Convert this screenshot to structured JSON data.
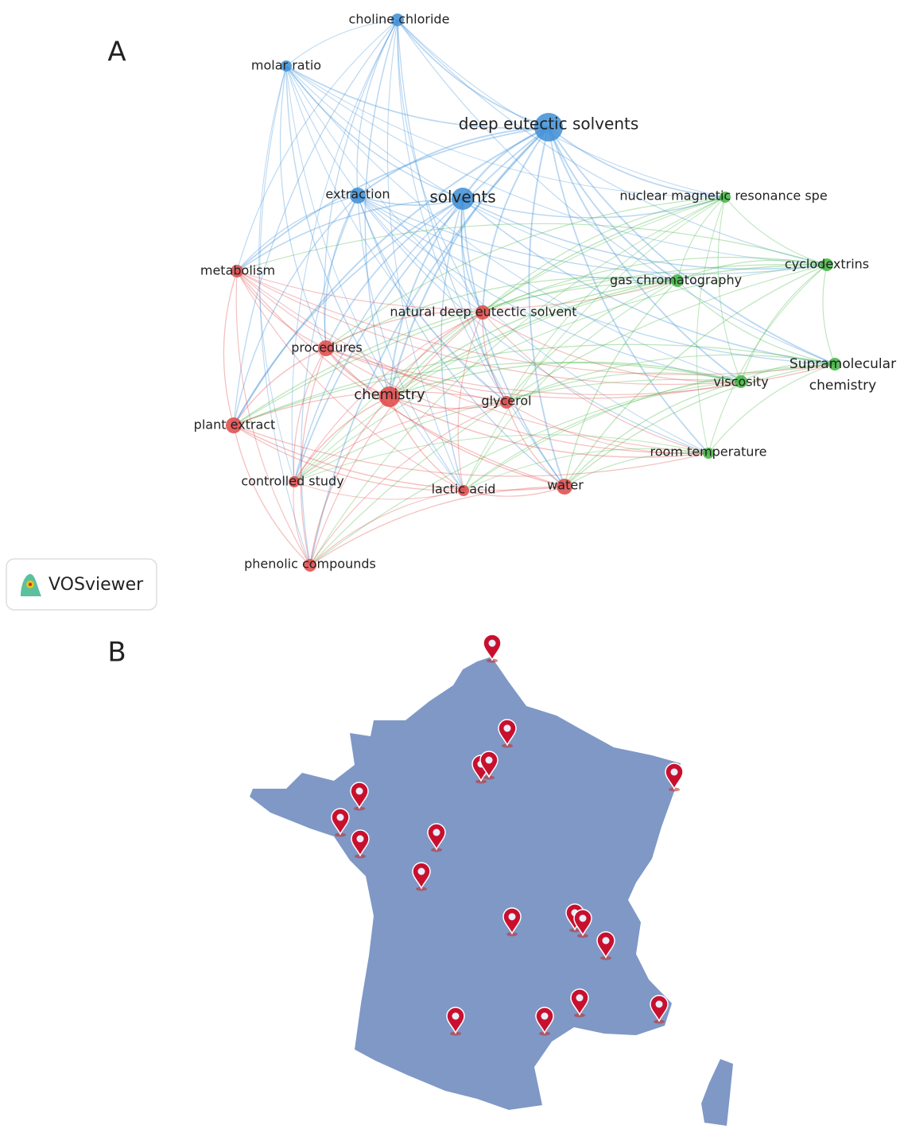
{
  "panel_a": {
    "label": "A",
    "nodes": [
      "choline chloride",
      "molar ratio",
      "deep eutectic solvents",
      "extraction",
      "solvents",
      "nuclear magnetic resonance spe",
      "cyclodextrins",
      "metabolism",
      "gas chromatography",
      "natural deep eutectic solvent",
      "procedures",
      [
        "Supramolecular",
        "chemistry"
      ],
      "viscosity",
      "chemistry",
      "glycerol",
      "plant extract",
      "room temperature",
      "controlled study",
      "lactic acid",
      "water",
      "phenolic compounds"
    ],
    "logo": "VOSviewer"
  },
  "panel_b": {
    "label": "B"
  }
}
